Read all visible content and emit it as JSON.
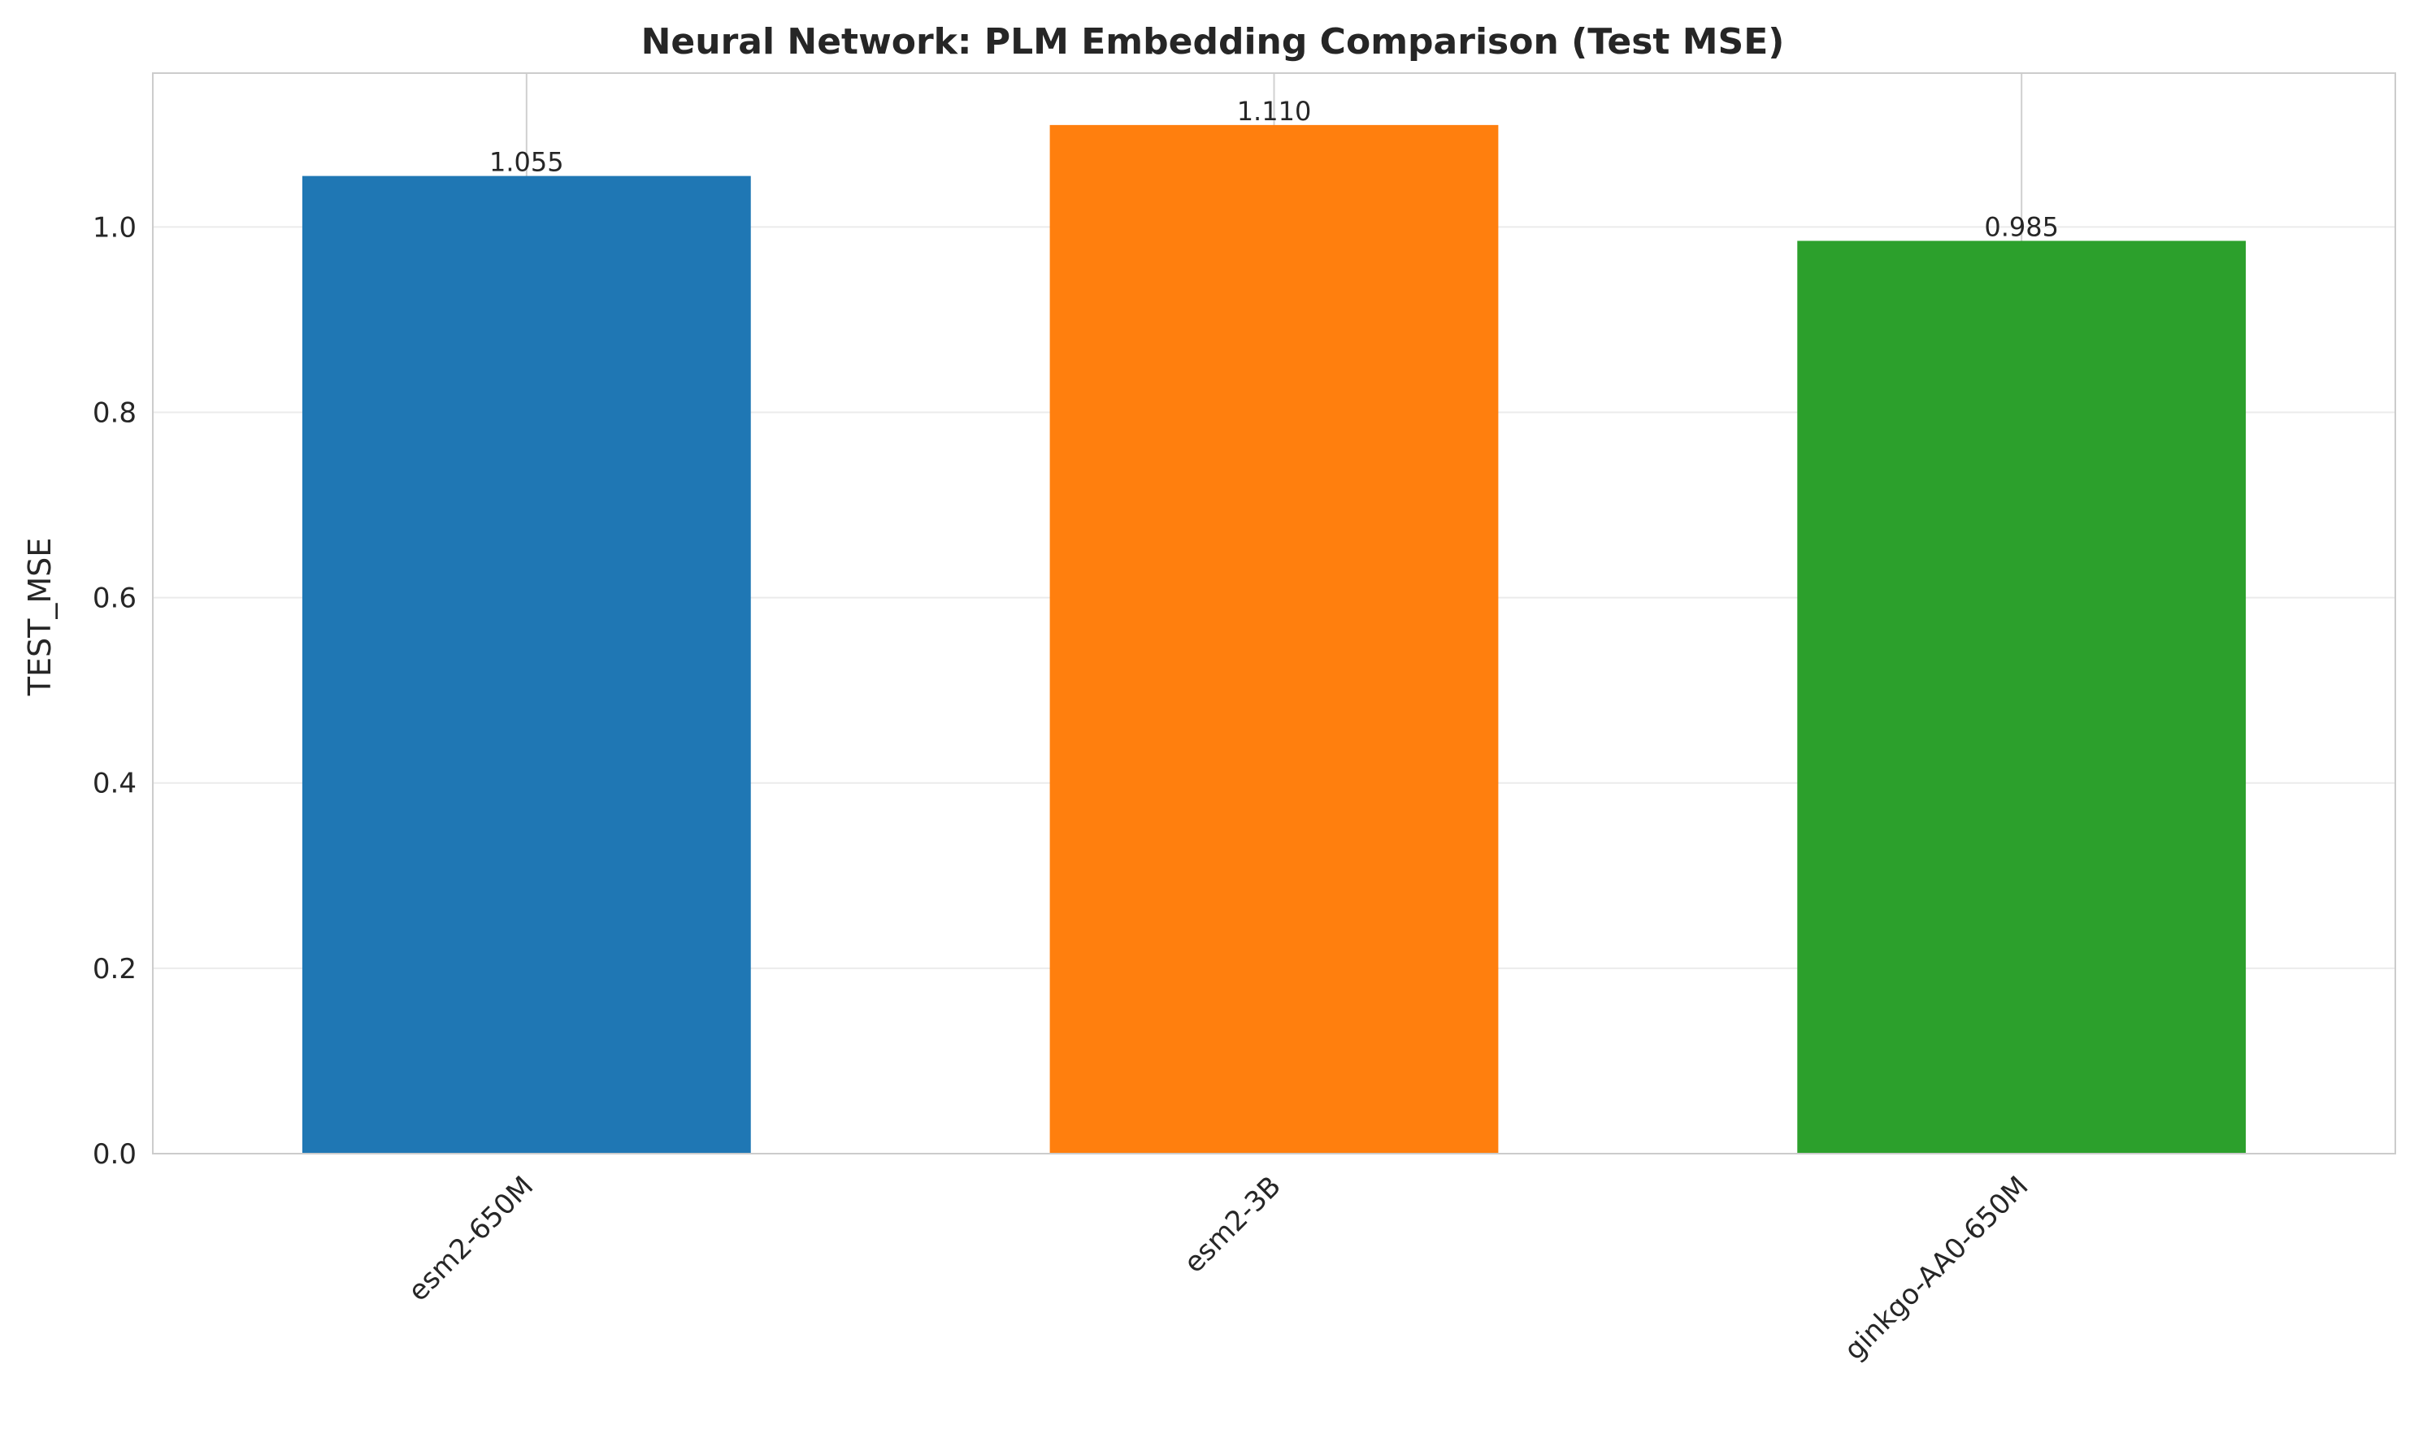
{
  "chart_data": {
    "type": "bar",
    "title": "Neural Network: PLM Embedding Comparison (Test MSE)",
    "xlabel": "",
    "ylabel": "TEST_MSE",
    "categories": [
      "esm2-650M",
      "esm2-3B",
      "ginkgo-AA0-650M"
    ],
    "values": [
      1.055,
      1.11,
      0.985
    ],
    "value_labels": [
      "1.055",
      "1.110",
      "0.985"
    ],
    "colors": [
      "#1f77b4",
      "#ff7f0e",
      "#2ca02c"
    ],
    "ylim": [
      0,
      1.166
    ],
    "yticks": [
      0.0,
      0.2,
      0.4,
      0.6,
      0.8,
      1.0
    ],
    "ytick_labels": [
      "0.0",
      "0.2",
      "0.4",
      "0.6",
      "0.8",
      "1.0"
    ],
    "grid": true,
    "xtick_rotation": 45,
    "legend": "none"
  }
}
